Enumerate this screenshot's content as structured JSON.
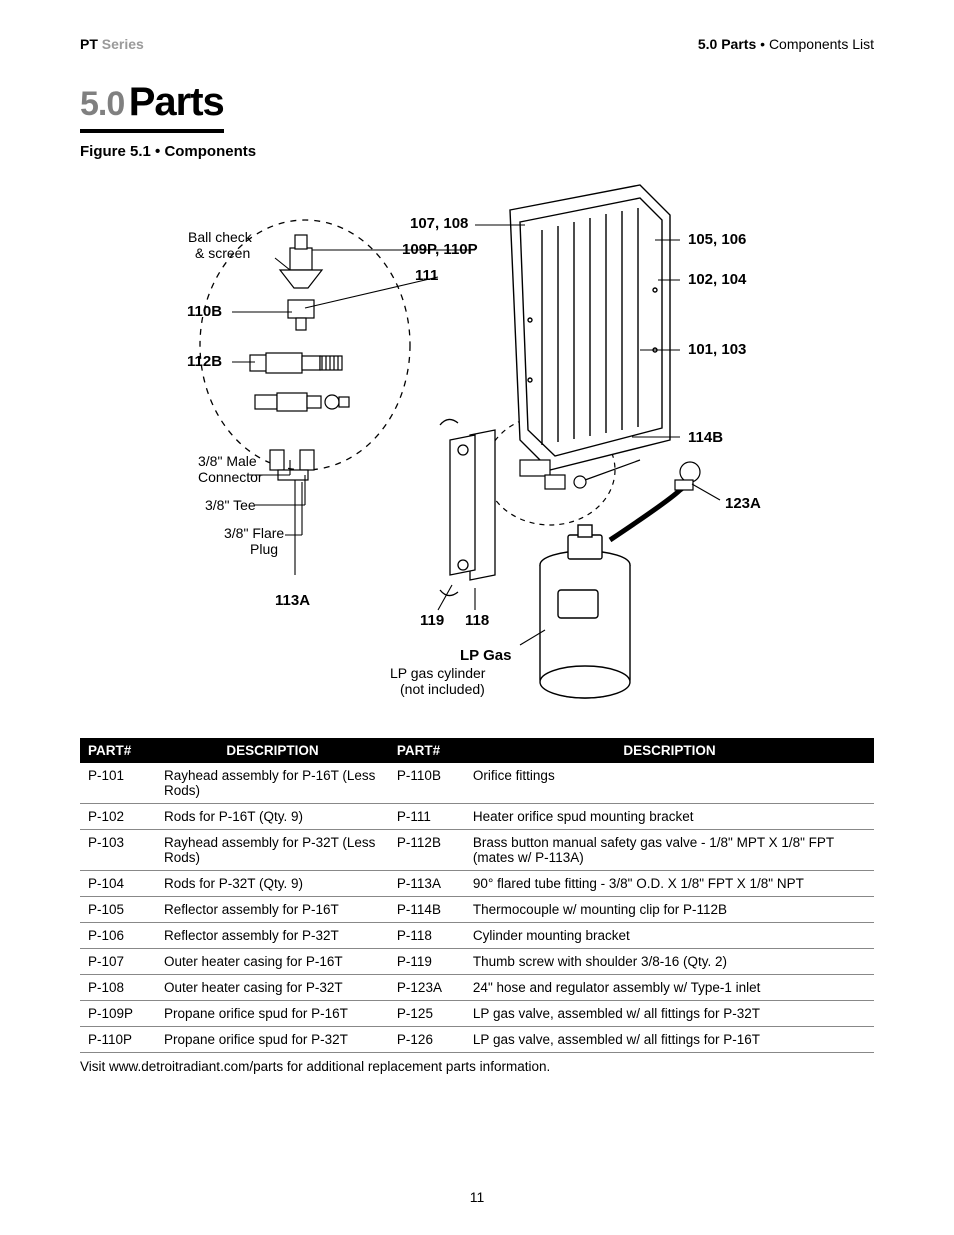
{
  "header": {
    "series_bold": "PT",
    "series_grey": "Series",
    "section": "5.0",
    "section_title": "Parts",
    "bullet": "•",
    "subtitle": "Components List"
  },
  "title": {
    "num": "5.0",
    "word": "Parts"
  },
  "figure_caption": "Figure 5.1 • Components",
  "diagram_labels": {
    "l107": "107, 108",
    "l109": "109P, 110P",
    "l111": "111",
    "l110b": "110B",
    "l112b": "112B",
    "ball1": "Ball check",
    "ball2": "& screen",
    "male1": "3/8\" Male",
    "male2": "Connector",
    "tee": "3/8\" Tee",
    "flare1": "3/8\" Flare",
    "flare2": "Plug",
    "l113a": "113A",
    "l119": "119",
    "l118": "118",
    "lp_bold": "LP Gas",
    "lp1": "LP gas cylinder",
    "lp2": "(not included)",
    "l105": "105, 106",
    "l102": "102, 104",
    "l101": "101, 103",
    "l114b": "114B",
    "l123a": "123A"
  },
  "table": {
    "h_part": "PART#",
    "h_desc": "DESCRIPTION",
    "left": [
      {
        "p": "P-101",
        "d": "Rayhead assembly for P-16T (Less Rods)"
      },
      {
        "p": "P-102",
        "d": "Rods for P-16T (Qty. 9)"
      },
      {
        "p": "P-103",
        "d": "Rayhead assembly for P-32T (Less Rods)"
      },
      {
        "p": "P-104",
        "d": "Rods for P-32T (Qty. 9)"
      },
      {
        "p": "P-105",
        "d": "Reflector assembly for P-16T"
      },
      {
        "p": "P-106",
        "d": "Reflector assembly for P-32T"
      },
      {
        "p": "P-107",
        "d": "Outer heater casing for P-16T"
      },
      {
        "p": "P-108",
        "d": "Outer heater casing for P-32T"
      },
      {
        "p": "P-109P",
        "d": "Propane orifice spud for P-16T"
      },
      {
        "p": "P-110P",
        "d": "Propane orifice spud for P-32T"
      }
    ],
    "right": [
      {
        "p": "P-110B",
        "d": "Orifice fittings"
      },
      {
        "p": "P-111",
        "d": "Heater orifice spud mounting bracket"
      },
      {
        "p": "P-112B",
        "d": "Brass button manual safety gas valve - 1/8\" MPT X 1/8\" FPT (mates w/ P-113A)"
      },
      {
        "p": "P-113A",
        "d": "90° flared tube fitting - 3/8\" O.D. X 1/8\" FPT X 1/8\" NPT"
      },
      {
        "p": "P-114B",
        "d": "Thermocouple w/ mounting clip for P-112B"
      },
      {
        "p": "P-118",
        "d": "Cylinder mounting bracket"
      },
      {
        "p": "P-119",
        "d": "Thumb screw with shoulder 3/8-16 (Qty. 2)"
      },
      {
        "p": "P-123A",
        "d": "24\" hose and regulator assembly w/ Type-1 inlet"
      },
      {
        "p": "P-125",
        "d": "LP gas valve, assembled w/ all fittings for P-32T"
      },
      {
        "p": "P-126",
        "d": "LP gas valve, assembled w/ all fittings for P-16T"
      }
    ]
  },
  "footnote": "Visit www.detroitradiant.com/parts for additional replacement parts information.",
  "page_number": "11",
  "colors": {
    "grey": "#808080",
    "lightgrey": "#9a9a9a",
    "black": "#000000",
    "border": "#888888"
  }
}
